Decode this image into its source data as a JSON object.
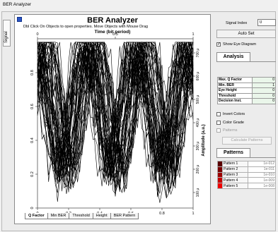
{
  "window": {
    "title": "BER Analyzer"
  },
  "side_tab": {
    "label": "Signal"
  },
  "plot": {
    "title": "BER Analyzer",
    "subtitle": "Dbl Click On Objects to open properties.  Move Objects with Mouse Drag",
    "top_axis_title": "Time (bit period)",
    "right_axis_title": "Amplitude (a.u.)"
  },
  "bottom_tabs": [
    "Q Factor",
    "Min BER",
    "Threshold",
    "Height",
    "BER Pattern"
  ],
  "right_panel": {
    "signal_index_label": "Signal Index",
    "signal_index_value": "0",
    "autoset_label": "Auto Set",
    "show_eye_label": "Show Eye Diagram",
    "analysis_tab": "Analysis",
    "analysis_rows": [
      {
        "k": "Max. Q Factor",
        "v": "0"
      },
      {
        "k": "Min. BER",
        "v": "1"
      },
      {
        "k": "Eye Height",
        "v": "0"
      },
      {
        "k": "Threshold",
        "v": "0"
      },
      {
        "k": "Decision Inst.",
        "v": "0"
      }
    ],
    "invert_colors_label": "Invert Colors",
    "color_grade_label": "Color Grade",
    "patterns_check_label": "Patterns",
    "calc_patterns_label": "Calculate Patterns",
    "patterns_tab": "Patterns",
    "patterns": [
      {
        "name": "Pattern 1",
        "value": "1e-012",
        "color": "#5a0000"
      },
      {
        "name": "Pattern 2",
        "value": "1e-011",
        "color": "#7a0000"
      },
      {
        "name": "Pattern 3",
        "value": "1e-010",
        "color": "#9c0000"
      },
      {
        "name": "Pattern 4",
        "value": "1e-009",
        "color": "#c40000"
      },
      {
        "name": "Pattern 5",
        "value": "1e-008",
        "color": "#ee0000"
      }
    ]
  },
  "chart_data": {
    "type": "line",
    "title": "BER Analyzer",
    "x_bottom": {
      "range": [
        0,
        1
      ],
      "ticks": [
        "0",
        "0.2",
        "0.4",
        "0.6",
        "0.8",
        "1"
      ]
    },
    "x_top": {
      "label": "Time (bit period)",
      "range": [
        0,
        1
      ],
      "ticks": [
        "0",
        "0.5",
        "1"
      ]
    },
    "y_left": {
      "range": [
        0,
        1
      ],
      "ticks": [
        "0",
        "0.2",
        "0.4",
        "0.6",
        "0.8"
      ]
    },
    "y_right": {
      "label": "Amplitude (a.u.)",
      "ticks": [
        "100 μ",
        "200 μ",
        "300 μ",
        "400 μ",
        "500 μ",
        "600 μ",
        "700 μ"
      ]
    },
    "grid": false,
    "trace_color": "#000000"
  }
}
